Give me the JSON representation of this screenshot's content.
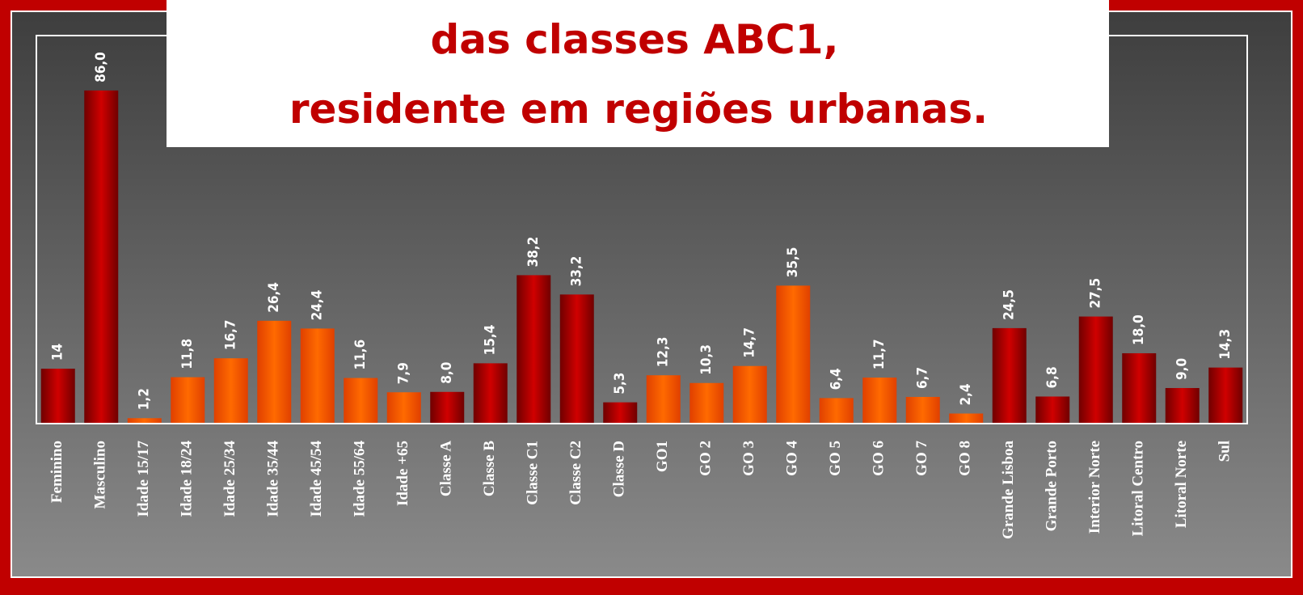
{
  "chart_data": {
    "type": "bar",
    "title_lines": [
      "das classes ABC1,",
      "residente em regiões urbanas."
    ],
    "categories": [
      "Feminino",
      "Masculino",
      "Idade 15/17",
      "Idade 18/24",
      "Idade 25/34",
      "Idade 35/44",
      "Idade 45/54",
      "Idade 55/64",
      "Idade +65",
      "Classe A",
      "Classe B",
      "Classe C1",
      "Classe C2",
      "Classe D",
      "GO1",
      "GO 2",
      "GO 3",
      "GO 4",
      "GO 5",
      "GO 6",
      "GO 7",
      "GO 8",
      "Grande Lisboa",
      "Grande Porto",
      "Interior Norte",
      "Litoral Centro",
      "Litoral Norte",
      "Sul"
    ],
    "values": [
      14,
      86.0,
      1.2,
      11.8,
      16.7,
      26.4,
      24.4,
      11.6,
      7.9,
      8.0,
      15.4,
      38.2,
      33.2,
      5.3,
      12.3,
      10.3,
      14.7,
      35.5,
      6.4,
      11.7,
      6.7,
      2.4,
      24.5,
      6.8,
      27.5,
      18.0,
      9.0,
      14.3
    ],
    "value_labels": [
      "14",
      "86,0",
      "1,2",
      "11,8",
      "16,7",
      "26,4",
      "24,4",
      "11,6",
      "7,9",
      "8,0",
      "15,4",
      "38,2",
      "33,2",
      "5,3",
      "12,3",
      "10,3",
      "14,7",
      "35,5",
      "6,4",
      "11,7",
      "6,7",
      "2,4",
      "24,5",
      "6,8",
      "27,5",
      "18,0",
      "9,0",
      "14,3"
    ],
    "colors": [
      "#b00000",
      "#b00000",
      "#ff6000",
      "#ff6000",
      "#ff6000",
      "#ff6000",
      "#ff6000",
      "#ff6000",
      "#ff6000",
      "#b00000",
      "#b00000",
      "#b00000",
      "#b00000",
      "#b00000",
      "#ff6000",
      "#ff6000",
      "#ff6000",
      "#ff6000",
      "#ff6000",
      "#ff6000",
      "#ff6000",
      "#ff6000",
      "#b00000",
      "#b00000",
      "#b00000",
      "#b00000",
      "#b00000",
      "#b00000"
    ]
  }
}
